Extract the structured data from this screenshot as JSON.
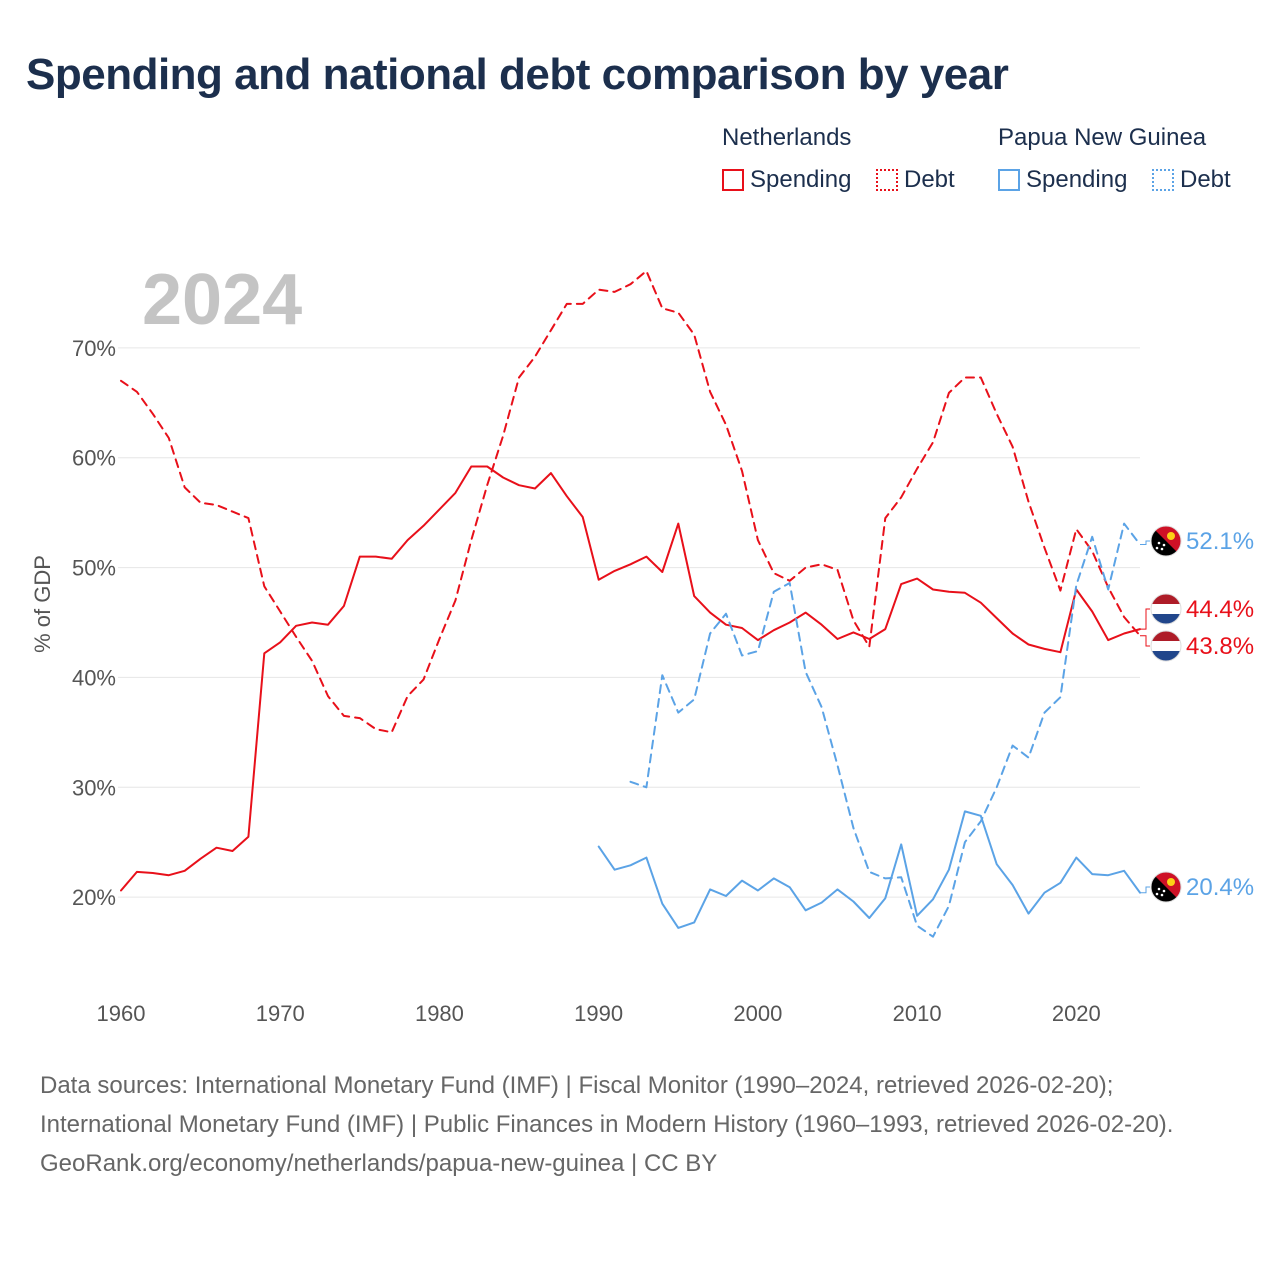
{
  "title": "Spending and national debt comparison by year",
  "legend": {
    "netherlands": {
      "name": "Netherlands",
      "spending": "Spending",
      "debt": "Debt"
    },
    "png": {
      "name": "Papua New Guinea",
      "spending": "Spending",
      "debt": "Debt"
    }
  },
  "colors": {
    "netherlands": "#e8101a",
    "png": "#5ba3e6",
    "grid": "#e6e6e6"
  },
  "footer": {
    "sources": "Data sources: International Monetary Fund (IMF) | Fiscal Monitor (1990–2024, retrieved 2026-02-20); International Monetary Fund (IMF) | Public Finances in Modern History (1960–1993, retrieved 2026-02-20).",
    "credit": "GeoRank.org/economy/netherlands/papua-new-guinea | CC BY"
  },
  "chart_data": {
    "type": "line",
    "year_label": "2024",
    "ylabel": "% of GDP",
    "ylim": [
      12,
      78
    ],
    "xlim": [
      1960,
      2024
    ],
    "xticks": [
      1960,
      1970,
      1980,
      1990,
      2000,
      2010,
      2020
    ],
    "xtick_labels": [
      "1960",
      "1970",
      "1980",
      "1990",
      "2000",
      "2010",
      "2020"
    ],
    "yticks": [
      20,
      30,
      40,
      50,
      60,
      70
    ],
    "ytick_labels": [
      "20%",
      "30%",
      "40%",
      "50%",
      "60%",
      "70%"
    ],
    "series": [
      {
        "name": "Netherlands Spending",
        "country": "netherlands",
        "style": "solid",
        "end_label": "44.4%",
        "end_value": 44.4,
        "x": [
          1960,
          1961,
          1962,
          1963,
          1964,
          1965,
          1966,
          1967,
          1968,
          1969,
          1970,
          1971,
          1972,
          1973,
          1974,
          1975,
          1976,
          1977,
          1978,
          1979,
          1980,
          1981,
          1982,
          1983,
          1984,
          1985,
          1986,
          1987,
          1988,
          1989,
          1990,
          1991,
          1992,
          1993,
          1994,
          1995,
          1996,
          1997,
          1998,
          1999,
          2000,
          2001,
          2002,
          2003,
          2004,
          2005,
          2006,
          2007,
          2008,
          2009,
          2010,
          2011,
          2012,
          2013,
          2014,
          2015,
          2016,
          2017,
          2018,
          2019,
          2020,
          2021,
          2022,
          2023,
          2024
        ],
        "values": [
          20.6,
          22.3,
          22.2,
          22.0,
          22.4,
          23.5,
          24.5,
          24.2,
          25.5,
          42.2,
          43.2,
          44.7,
          45.0,
          44.8,
          46.5,
          51.0,
          51.0,
          50.8,
          52.5,
          53.8,
          55.3,
          56.8,
          59.2,
          59.2,
          58.2,
          57.5,
          57.2,
          58.6,
          56.5,
          54.6,
          48.9,
          49.7,
          50.3,
          51.0,
          49.6,
          54.0,
          47.4,
          45.9,
          44.8,
          44.5,
          43.4,
          44.3,
          45.0,
          45.9,
          44.8,
          43.5,
          44.1,
          43.5,
          44.4,
          48.5,
          49.0,
          48.0,
          47.8,
          47.7,
          46.8,
          45.4,
          44.0,
          43.0,
          42.6,
          42.3,
          48.0,
          46.0,
          43.4,
          44.0,
          44.4
        ]
      },
      {
        "name": "Netherlands Debt",
        "country": "netherlands",
        "style": "dashed",
        "end_label": "43.8%",
        "end_value": 43.8,
        "x": [
          1960,
          1961,
          1962,
          1963,
          1964,
          1965,
          1966,
          1967,
          1968,
          1969,
          1970,
          1971,
          1972,
          1973,
          1974,
          1975,
          1976,
          1977,
          1978,
          1979,
          1980,
          1981,
          1982,
          1983,
          1984,
          1985,
          1986,
          1987,
          1988,
          1989,
          1990,
          1991,
          1992,
          1993,
          1994,
          1995,
          1996,
          1997,
          1998,
          1999,
          2000,
          2001,
          2002,
          2003,
          2004,
          2005,
          2006,
          2007,
          2008,
          2009,
          2010,
          2011,
          2012,
          2013,
          2014,
          2015,
          2016,
          2017,
          2018,
          2019,
          2020,
          2021,
          2022,
          2023,
          2024
        ],
        "values": [
          67.0,
          66.0,
          64.0,
          61.8,
          57.3,
          55.9,
          55.7,
          55.1,
          54.5,
          48.3,
          46.0,
          43.7,
          41.5,
          38.3,
          36.5,
          36.3,
          35.3,
          35.0,
          38.3,
          39.8,
          43.5,
          47.0,
          52.5,
          57.5,
          62.0,
          67.3,
          69.2,
          71.6,
          74.0,
          74.0,
          75.3,
          75.1,
          75.8,
          77.0,
          73.6,
          73.2,
          71.2,
          66.0,
          63.0,
          58.8,
          52.5,
          49.5,
          48.8,
          50.0,
          50.3,
          49.8,
          45.2,
          42.8,
          54.5,
          56.4,
          59.0,
          61.4,
          65.9,
          67.3,
          67.3,
          64.0,
          61.0,
          56.0,
          51.8,
          47.9,
          53.5,
          51.5,
          48.2,
          45.5,
          43.8
        ]
      },
      {
        "name": "Papua New Guinea Spending",
        "country": "png",
        "style": "solid",
        "end_label": "20.4%",
        "end_value": 20.4,
        "x": [
          1990,
          1991,
          1992,
          1993,
          1994,
          1995,
          1996,
          1997,
          1998,
          1999,
          2000,
          2001,
          2002,
          2003,
          2004,
          2005,
          2006,
          2007,
          2008,
          2009,
          2010,
          2011,
          2012,
          2013,
          2014,
          2015,
          2016,
          2017,
          2018,
          2019,
          2020,
          2021,
          2022,
          2023,
          2024
        ],
        "values": [
          24.6,
          22.5,
          22.9,
          23.6,
          19.4,
          17.2,
          17.7,
          20.7,
          20.1,
          21.5,
          20.6,
          21.7,
          20.9,
          18.8,
          19.5,
          20.7,
          19.6,
          18.1,
          19.9,
          24.8,
          18.3,
          19.8,
          22.5,
          27.8,
          27.4,
          23.0,
          21.1,
          18.5,
          20.4,
          21.3,
          23.6,
          22.1,
          22.0,
          22.4,
          20.4
        ]
      },
      {
        "name": "Papua New Guinea Debt",
        "country": "png",
        "style": "dashed",
        "end_label": "52.1%",
        "end_value": 52.1,
        "x": [
          1992,
          1993,
          1994,
          1995,
          1996,
          1997,
          1998,
          1999,
          2000,
          2001,
          2002,
          2003,
          2004,
          2005,
          2006,
          2007,
          2008,
          2009,
          2010,
          2011,
          2012,
          2013,
          2014,
          2015,
          2016,
          2017,
          2018,
          2019,
          2020,
          2021,
          2022,
          2023,
          2024
        ],
        "values": [
          30.5,
          30.0,
          40.2,
          36.8,
          38.0,
          44.0,
          45.8,
          42.0,
          42.4,
          47.8,
          48.6,
          40.5,
          37.3,
          32.0,
          26.3,
          22.3,
          21.7,
          21.8,
          17.4,
          16.4,
          19.2,
          25.0,
          26.9,
          30.0,
          33.8,
          32.7,
          36.8,
          38.2,
          48.4,
          52.8,
          48.0,
          54.0,
          52.1
        ]
      }
    ]
  }
}
